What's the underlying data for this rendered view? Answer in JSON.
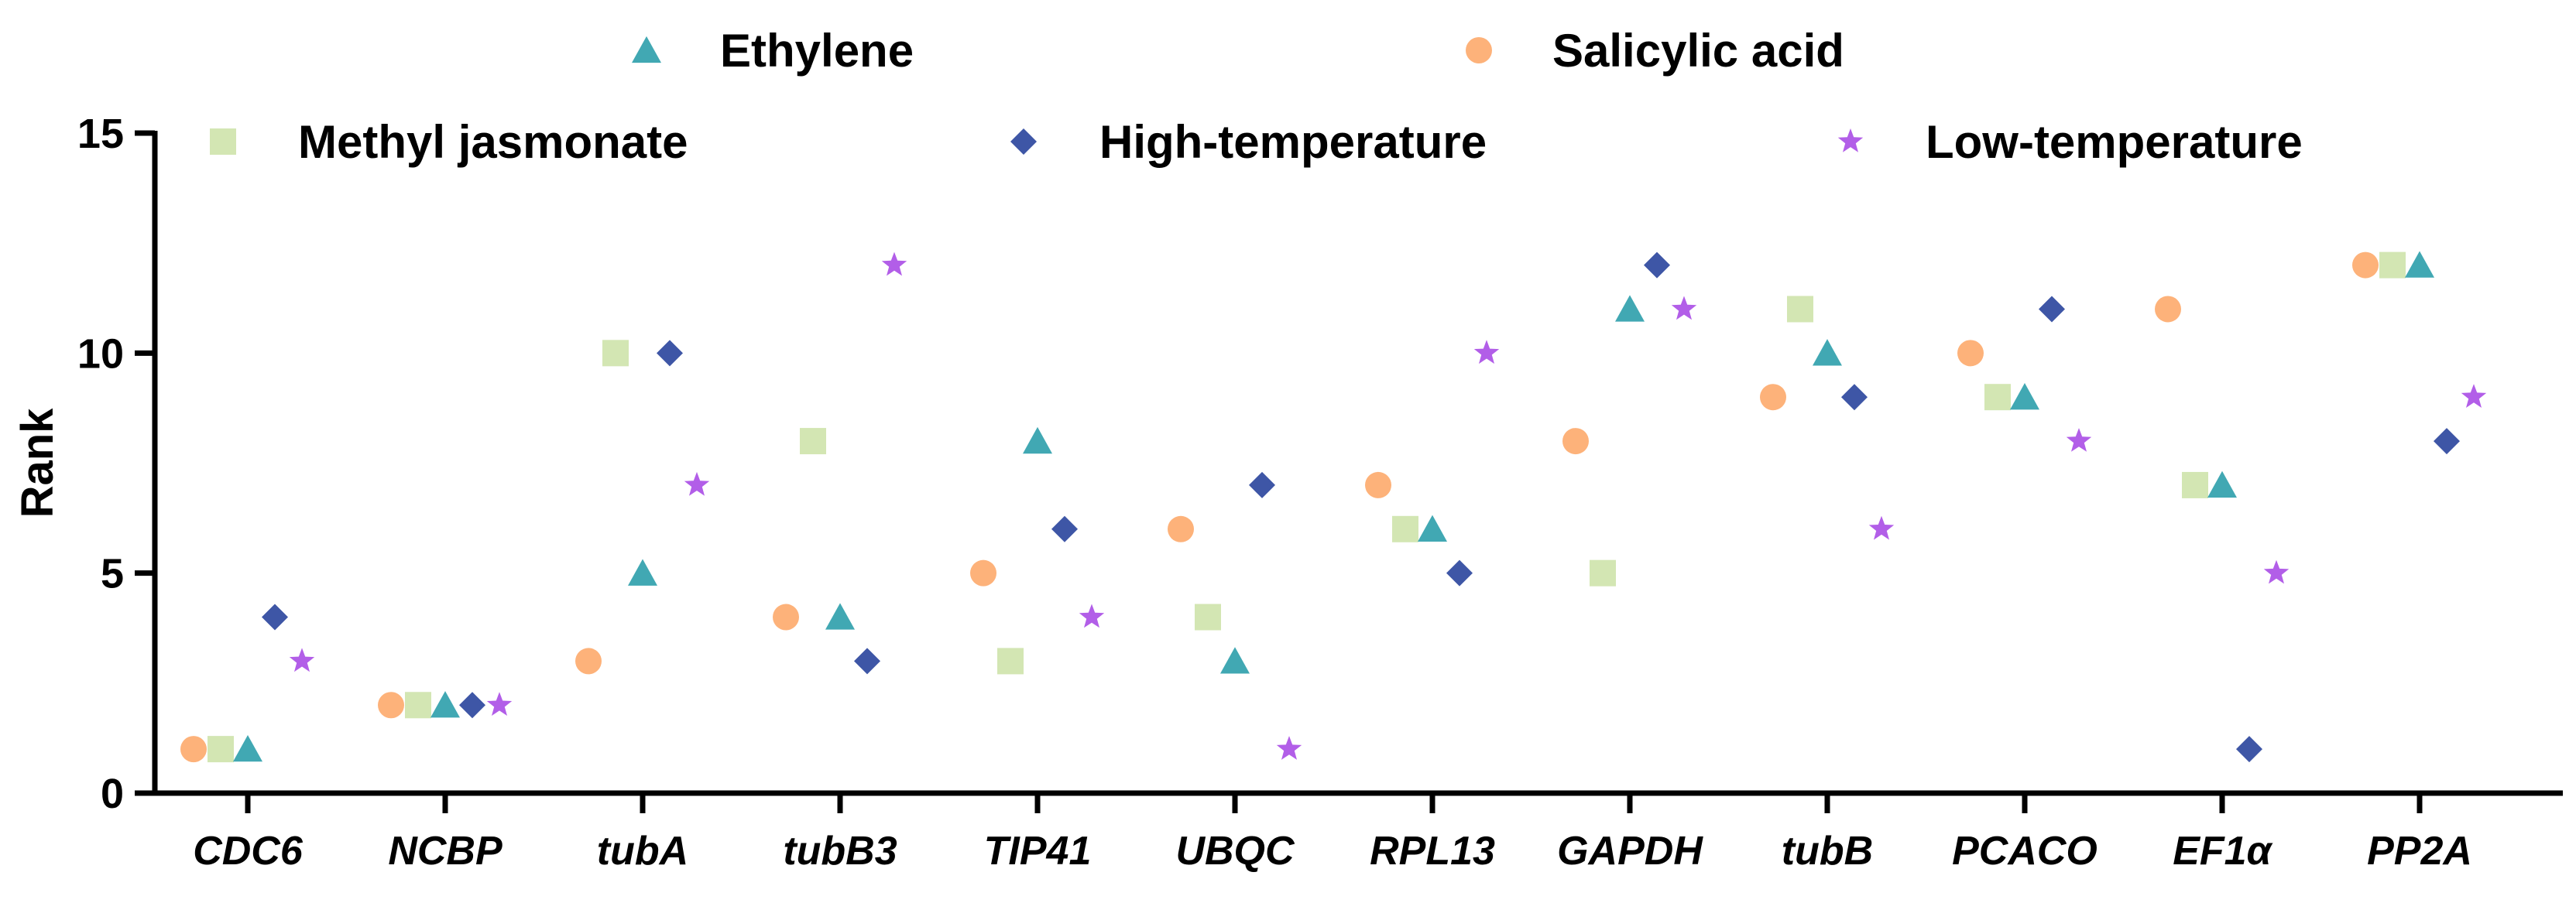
{
  "chart_data": {
    "type": "scatter",
    "title": "",
    "xlabel": "",
    "ylabel": "Rank",
    "ylim": [
      0,
      15
    ],
    "yticks": [
      0,
      5,
      10,
      15
    ],
    "grid": false,
    "legend_position": "top",
    "categories": [
      "CDC6",
      "NCBP",
      "tubA",
      "tubB3",
      "TIP41",
      "UBQC",
      "RPL13",
      "GAPDH",
      "tubB",
      "PCACO",
      "EF1α",
      "PP2A"
    ],
    "series": [
      {
        "name": "Salicylic acid",
        "marker": "circle",
        "color": "#FDB27A",
        "values": [
          1,
          2,
          3,
          4,
          5,
          6,
          7,
          8,
          9,
          10,
          11,
          12
        ]
      },
      {
        "name": "Methyl jasmonate",
        "marker": "square",
        "color": "#D3E6B3",
        "values": [
          1,
          2,
          10,
          8,
          3,
          4,
          6,
          5,
          11,
          9,
          7,
          12
        ]
      },
      {
        "name": "Ethylene",
        "marker": "triangle",
        "color": "#41A8B3",
        "values": [
          1,
          2,
          5,
          4,
          8,
          3,
          6,
          11,
          10,
          9,
          7,
          12
        ]
      },
      {
        "name": "High-temperature",
        "marker": "diamond",
        "color": "#3E56A6",
        "values": [
          4,
          2,
          10,
          3,
          6,
          7,
          5,
          12,
          9,
          11,
          1,
          8
        ]
      },
      {
        "name": "Low-temperature",
        "marker": "star",
        "color": "#B25EE8",
        "values": [
          3,
          2,
          7,
          12,
          4,
          1,
          10,
          11,
          6,
          8,
          5,
          9
        ]
      }
    ],
    "legend_rows": [
      [
        "Ethylene",
        "Salicylic acid"
      ],
      [
        "Methyl jasmonate",
        "High-temperature",
        "Low-temperature"
      ]
    ]
  }
}
